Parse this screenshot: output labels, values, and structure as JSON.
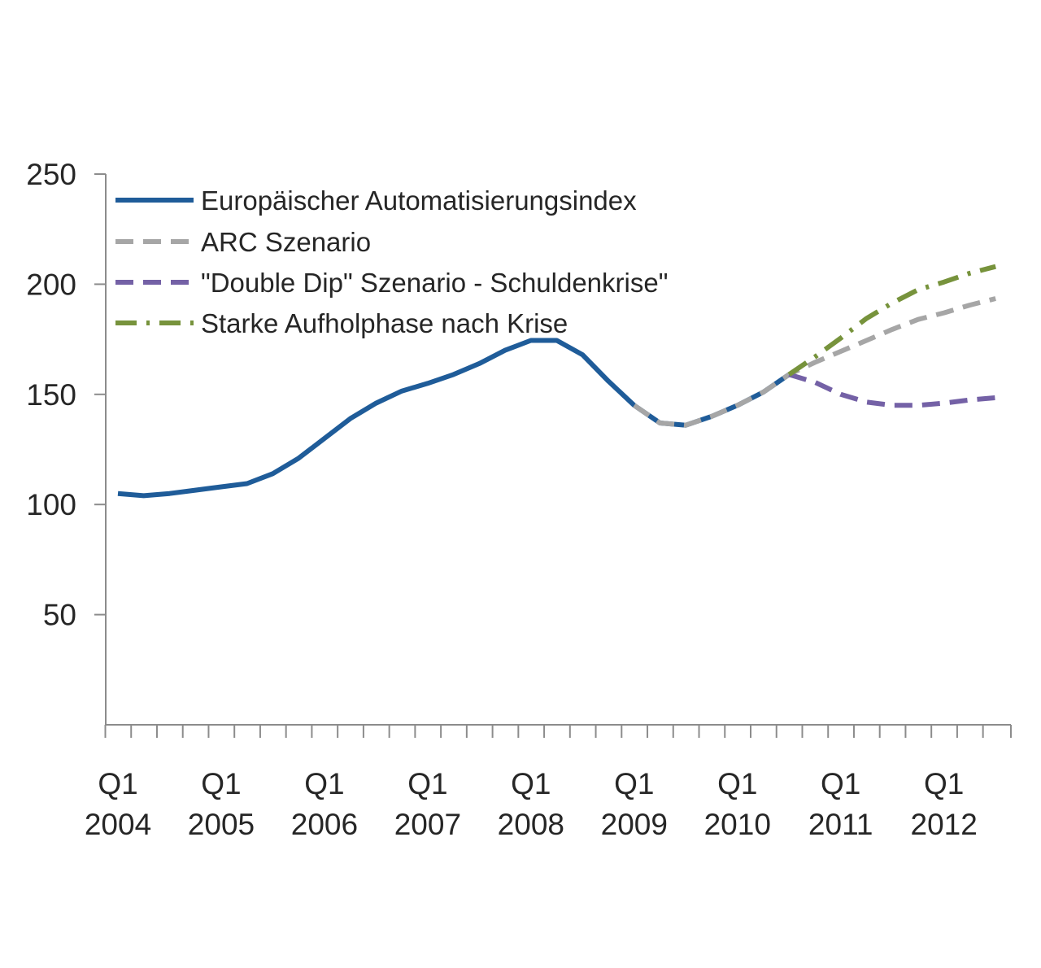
{
  "chart_data": {
    "type": "line",
    "title": "",
    "xlabel": "",
    "ylabel": "",
    "ylim": [
      0,
      250
    ],
    "y_ticks": [
      50,
      100,
      150,
      200,
      250
    ],
    "x_tick_labels": [
      {
        "quarter": "Q1",
        "year": "2004",
        "index": 0
      },
      {
        "quarter": "Q1",
        "year": "2005",
        "index": 4
      },
      {
        "quarter": "Q1",
        "year": "2006",
        "index": 8
      },
      {
        "quarter": "Q1",
        "year": "2007",
        "index": 12
      },
      {
        "quarter": "Q1",
        "year": "2008",
        "index": 16
      },
      {
        "quarter": "Q1",
        "year": "2009",
        "index": 20
      },
      {
        "quarter": "Q1",
        "year": "2010",
        "index": 24
      },
      {
        "quarter": "Q1",
        "year": "2011",
        "index": 28
      },
      {
        "quarter": "Q1",
        "year": "2012",
        "index": 32
      }
    ],
    "quarters_count": 35,
    "grid": false,
    "legend_position": "top-left",
    "series": [
      {
        "name": "Europäischer Automatisierungsindex",
        "color": "#1f5c99",
        "style": "solid",
        "start_index": 0,
        "values": [
          105,
          104,
          105,
          106.5,
          108,
          109.5,
          114,
          121,
          130,
          139,
          146,
          151.5,
          155,
          159,
          164,
          170,
          174.5,
          174.5,
          168,
          156,
          145,
          137,
          136,
          140,
          145,
          151,
          159
        ]
      },
      {
        "name": "ARC Szenario",
        "color": "#a6a6a6",
        "style": "dashed",
        "start_index": 20,
        "values": [
          145,
          137,
          136,
          140,
          145,
          151,
          159,
          164.5,
          169.5,
          174.5,
          179.5,
          184,
          187,
          190.5,
          193.5
        ]
      },
      {
        "name": "\"Double Dip\" Szenario - Schuldenkrise\"",
        "color": "#7461a6",
        "style": "dashed",
        "start_index": 26,
        "values": [
          159,
          155.5,
          150,
          146.5,
          145,
          145,
          146,
          147.5,
          148.5
        ]
      },
      {
        "name": "Starke Aufholphase nach Krise",
        "color": "#77933c",
        "style": "dash-dot",
        "start_index": 26,
        "values": [
          159,
          167,
          175.5,
          184.5,
          191.5,
          197.5,
          201,
          205,
          208
        ]
      }
    ]
  }
}
